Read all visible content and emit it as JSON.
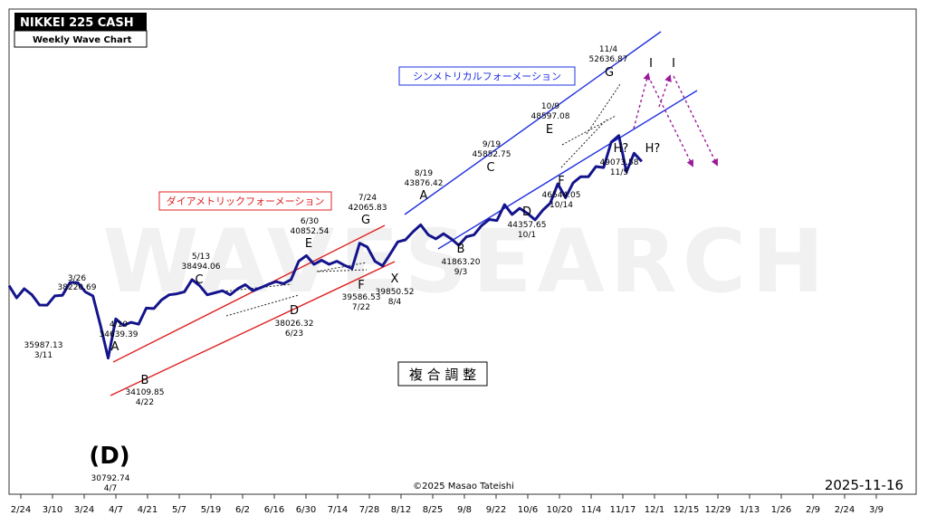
{
  "header": {
    "title": "NIKKEI 225 CASH",
    "subtitle": "Weekly Wave Chart"
  },
  "watermark": "WAVESEARCH",
  "copyright": "©2025 Masao Tateishi",
  "date_stamp": "2025-11-16",
  "captions": {
    "diametric": "ダイアメトリックフォーメーション",
    "symmetrical": "シンメトリカルフォーメーション",
    "complex": "複 合 調 整"
  },
  "colors": {
    "price_line": "#14148c",
    "diametric_channel": "#e02020",
    "symmetrical_channel": "#2030e0",
    "projection": "#9a1a9a"
  },
  "chart_data": {
    "type": "line",
    "x_ticks": [
      "2/24",
      "3/10",
      "3/24",
      "4/7",
      "4/21",
      "5/7",
      "5/19",
      "6/2",
      "6/16",
      "6/30",
      "7/14",
      "7/28",
      "8/12",
      "8/25",
      "9/8",
      "9/22",
      "10/6",
      "10/20",
      "11/4",
      "11/17",
      "12/1",
      "12/15",
      "12/29",
      "1/13",
      "1/26",
      "2/9",
      "2/24",
      "3/9"
    ],
    "series": [
      {
        "values": [
          37900,
          36700,
          37600,
          37000,
          36000,
          35987,
          36900,
          36950,
          38221,
          38200,
          37300,
          36900,
          34000,
          30793,
          34639,
          34000,
          34300,
          34110,
          35700,
          35650,
          36500,
          37000,
          37100,
          37300,
          38494,
          37900,
          37000,
          37200,
          37400,
          37000,
          37600,
          38000,
          37400,
          37700,
          38026,
          38300,
          38100,
          38500,
          40300,
          40853,
          40000,
          40400,
          40000,
          40300,
          39900,
          39587,
          42066,
          41700,
          40300,
          39851,
          41000,
          42200,
          42400,
          43200,
          43876,
          42900,
          42500,
          43000,
          42500,
          41863,
          42700,
          42900,
          43800,
          44400,
          44300,
          45853,
          44900,
          45500,
          45000,
          44358,
          45300,
          46000,
          47900,
          46544,
          48000,
          48600,
          48597,
          49600,
          49500,
          52000,
          52637,
          49074,
          50900,
          50100
        ]
      }
    ],
    "waves": [
      {
        "label": "(D)",
        "date": "4/7",
        "value": "30792.74"
      },
      {
        "label": "",
        "date": "3/11",
        "value": "35987.13"
      },
      {
        "label": "",
        "date": "3/26",
        "value": "38220.69"
      },
      {
        "label": "A",
        "date": "4/10",
        "value": "34639.39"
      },
      {
        "label": "B",
        "date": "4/22",
        "value": "34109.85"
      },
      {
        "label": "C",
        "date": "5/13",
        "value": "38494.06"
      },
      {
        "label": "D",
        "date": "6/23",
        "value": "38026.32"
      },
      {
        "label": "E",
        "date": "6/30",
        "value": "40852.54"
      },
      {
        "label": "F",
        "date": "7/22",
        "value": "39586.53"
      },
      {
        "label": "G",
        "date": "7/24",
        "value": "42065.83"
      },
      {
        "label": "X",
        "date": "8/4",
        "value": "39850.52"
      },
      {
        "label": "A",
        "date": "8/19",
        "value": "43876.42"
      },
      {
        "label": "B",
        "date": "9/3",
        "value": "41863.20"
      },
      {
        "label": "C",
        "date": "9/19",
        "value": "45852.75"
      },
      {
        "label": "D",
        "date": "10/1",
        "value": "44357.65"
      },
      {
        "label": "E",
        "date": "10/9",
        "value": "48597.08"
      },
      {
        "label": "F",
        "date": "10/14",
        "value": "46544.05"
      },
      {
        "label": "G",
        "date": "11/4",
        "value": "52636.87"
      },
      {
        "label": "H?",
        "date": "11/5",
        "value": "49073.58"
      }
    ],
    "projection_labels": [
      "I",
      "I",
      "H?"
    ]
  }
}
